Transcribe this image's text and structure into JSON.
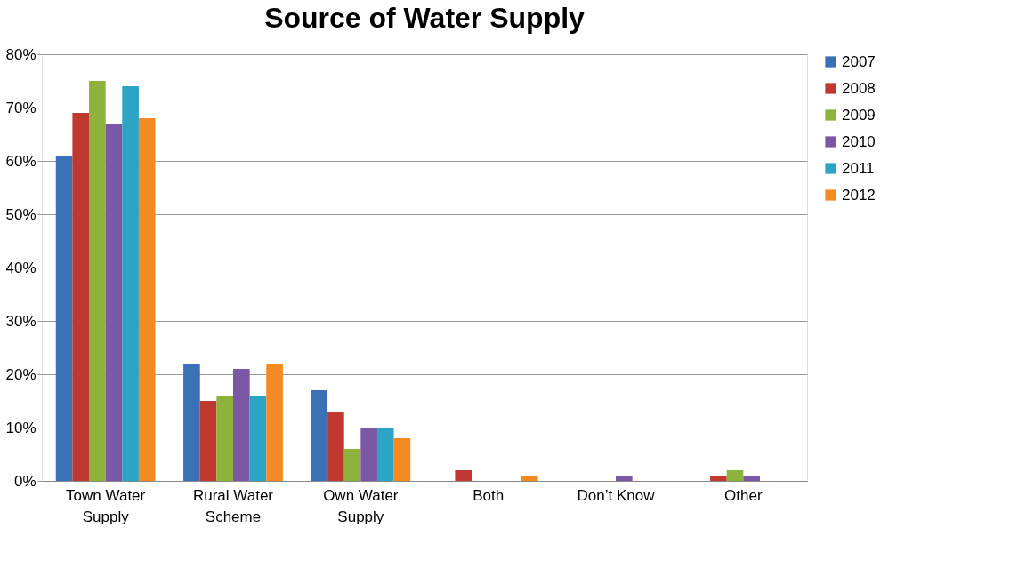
{
  "chart_data": {
    "type": "bar",
    "title": "Source of Water Supply",
    "categories": [
      "Town Water\nSupply",
      "Rural Water\nScheme",
      "Own Water\nSupply",
      "Both",
      "Don’t Know",
      "Other"
    ],
    "series": [
      {
        "name": "2007",
        "color": "#3b6fb6",
        "values": [
          61,
          22,
          17,
          0,
          0,
          0
        ]
      },
      {
        "name": "2008",
        "color": "#c0392f",
        "values": [
          69,
          15,
          13,
          2,
          0,
          1
        ]
      },
      {
        "name": "2009",
        "color": "#8db33c",
        "values": [
          75,
          16,
          6,
          0,
          0,
          2
        ]
      },
      {
        "name": "2010",
        "color": "#7a58a6",
        "values": [
          67,
          21,
          10,
          0,
          1,
          1
        ]
      },
      {
        "name": "2011",
        "color": "#2ba4c6",
        "values": [
          74,
          16,
          10,
          0,
          0,
          0
        ]
      },
      {
        "name": "2012",
        "color": "#f38b22",
        "values": [
          68,
          22,
          8,
          1,
          0,
          0
        ]
      }
    ],
    "ylim": [
      0,
      80
    ],
    "yticks": [
      {
        "value": 0,
        "label": "0%"
      },
      {
        "value": 10,
        "label": "10%"
      },
      {
        "value": 20,
        "label": "20%"
      },
      {
        "value": 30,
        "label": "30%"
      },
      {
        "value": 40,
        "label": "40%"
      },
      {
        "value": 50,
        "label": "50%"
      },
      {
        "value": 60,
        "label": "60%"
      },
      {
        "value": 70,
        "label": "70%"
      },
      {
        "value": 80,
        "label": "80%"
      }
    ],
    "grid": "y",
    "legend": "right"
  }
}
